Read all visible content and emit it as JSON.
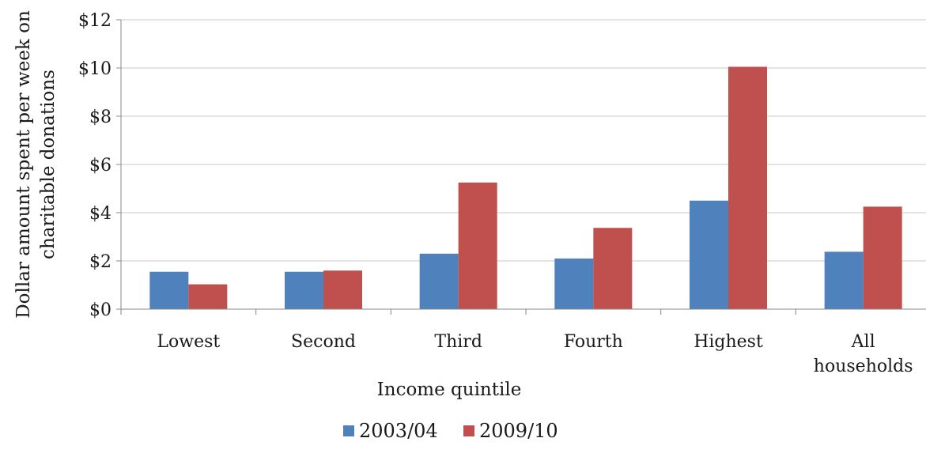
{
  "chart_data": {
    "type": "bar",
    "title": "",
    "xlabel": "Income quintile",
    "ylabel_lines": [
      "Dollar amount spent per week on",
      "charitable donations"
    ],
    "categories": [
      [
        "Lowest"
      ],
      [
        "Second"
      ],
      [
        "Third"
      ],
      [
        "Fourth"
      ],
      [
        "Highest"
      ],
      [
        "All",
        "households"
      ]
    ],
    "series": [
      {
        "name": "2003/04",
        "color": "#4f81bd",
        "values": [
          1.55,
          1.55,
          2.3,
          2.1,
          4.5,
          2.38
        ]
      },
      {
        "name": "2009/10",
        "color": "#c0504d",
        "values": [
          1.03,
          1.6,
          5.25,
          3.37,
          10.05,
          4.25
        ]
      }
    ],
    "ylim": [
      0,
      12
    ],
    "yticks": [
      0,
      2,
      4,
      6,
      8,
      10,
      12
    ],
    "ytick_labels": [
      "$0",
      "$2",
      "$4",
      "$6",
      "$8",
      "$10",
      "$12"
    ],
    "grid": true,
    "legend_position": "bottom"
  }
}
